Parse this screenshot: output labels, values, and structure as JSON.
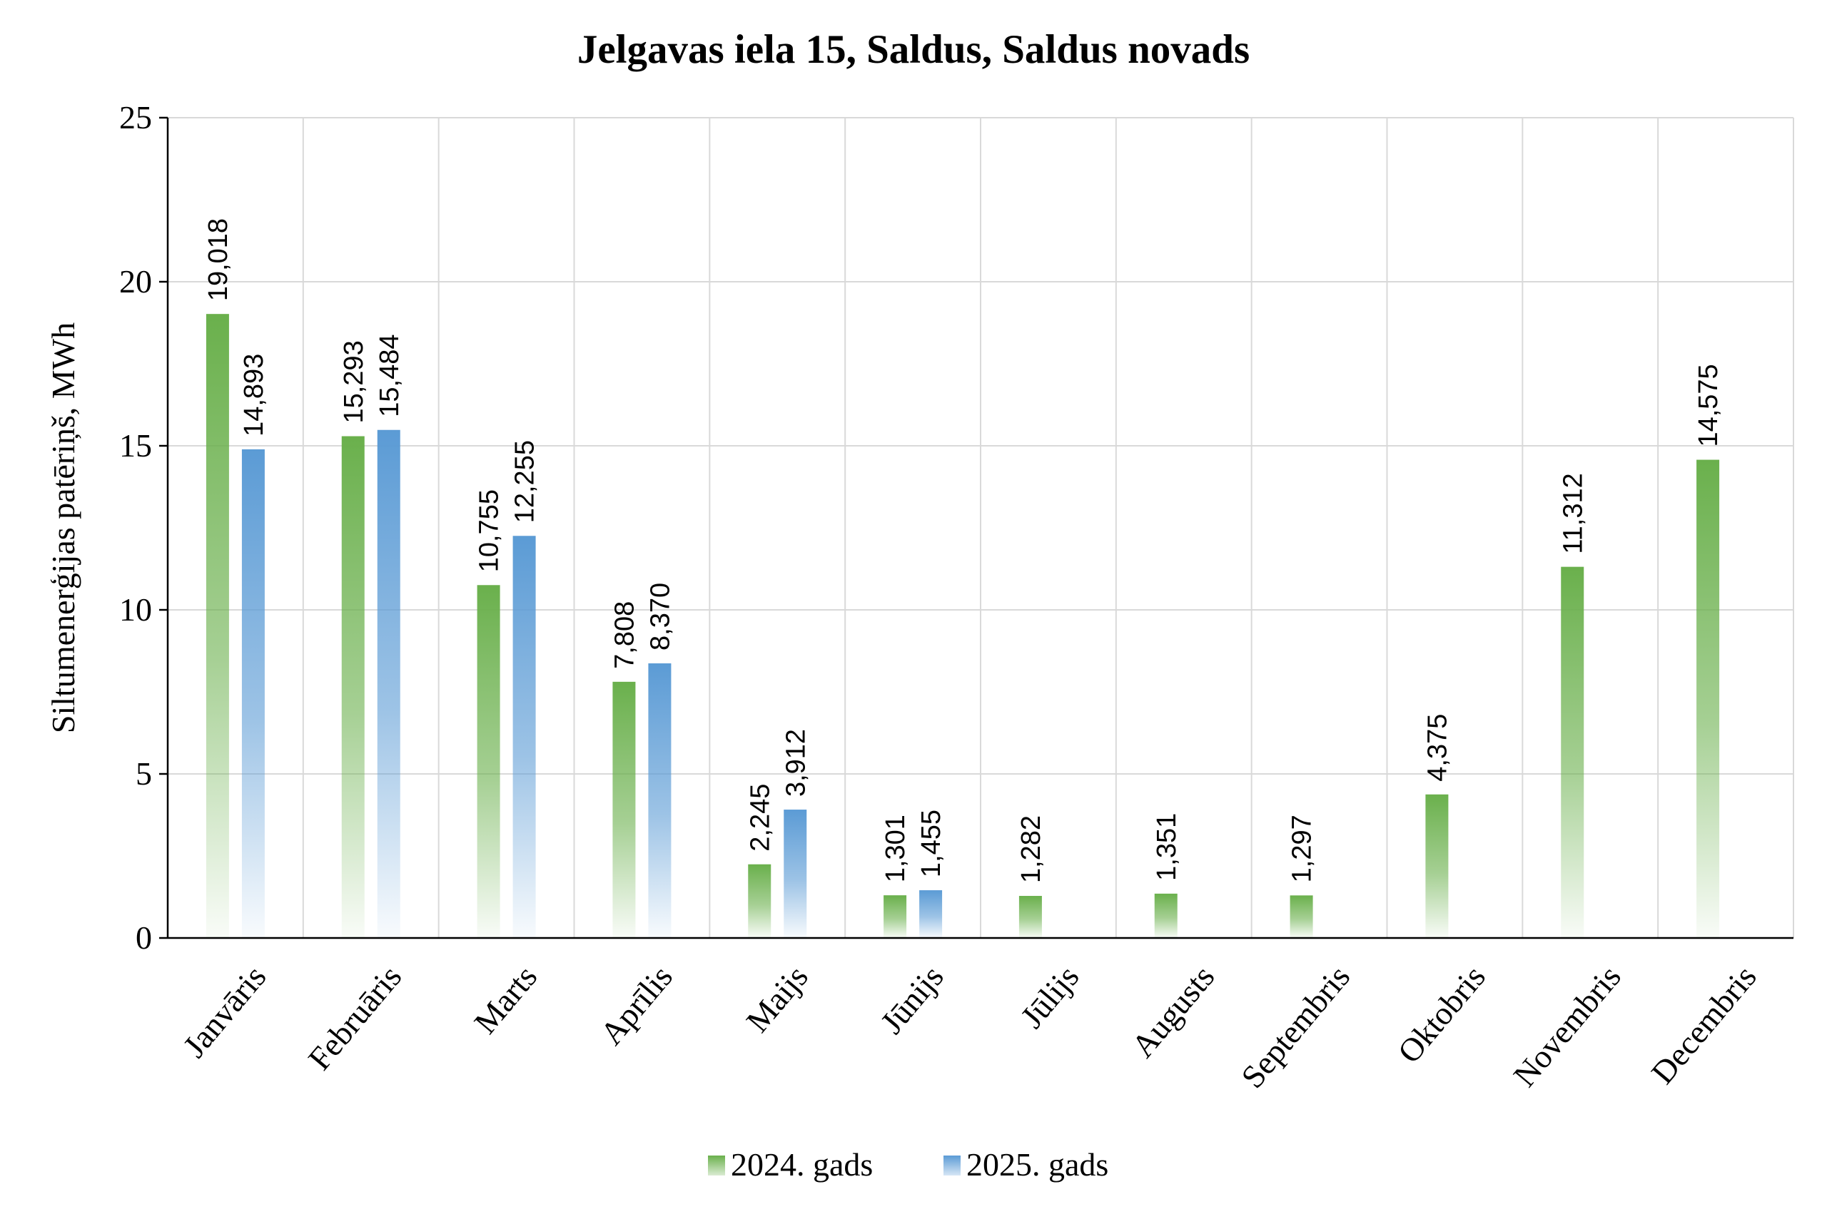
{
  "chart_data": {
    "type": "bar",
    "title": "Jelgavas iela 15, Saldus, Saldus novads",
    "ylabel": "Siltumenerģijas patēriņš, MWh",
    "xlabel": "",
    "ylim": [
      0,
      25
    ],
    "yticks": [
      0,
      5,
      10,
      15,
      20,
      25
    ],
    "grid": true,
    "legend_position": "bottom",
    "categories": [
      "Janvāris",
      "Februāris",
      "Marts",
      "Aprīlis",
      "Maijs",
      "Jūnijs",
      "Jūlijs",
      "Augusts",
      "Septembris",
      "Oktobris",
      "Novembris",
      "Decembris"
    ],
    "series": [
      {
        "name": "2024. gads",
        "color": "#6ab04c",
        "values": [
          19.018,
          15.293,
          10.755,
          7.808,
          2.245,
          1.301,
          1.282,
          1.351,
          1.297,
          4.375,
          11.312,
          14.575
        ],
        "labels": [
          "19,018",
          "15,293",
          "10,755",
          "7,808",
          "2,245",
          "1,301",
          "1,282",
          "1,351",
          "1,297",
          "4,375",
          "11,312",
          "14,575"
        ]
      },
      {
        "name": "2025. gads",
        "color": "#5b9bd5",
        "values": [
          14.893,
          15.484,
          12.255,
          8.37,
          3.912,
          1.455,
          null,
          null,
          null,
          null,
          null,
          null
        ],
        "labels": [
          "14,893",
          "15,484",
          "12,255",
          "8,370",
          "3,912",
          "1,455",
          null,
          null,
          null,
          null,
          null,
          null
        ]
      }
    ]
  }
}
